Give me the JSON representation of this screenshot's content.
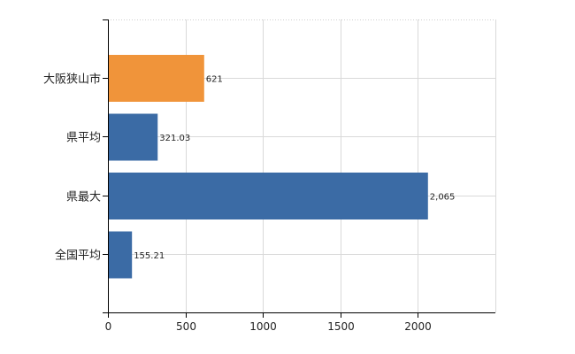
{
  "chart_data": {
    "type": "bar",
    "orientation": "horizontal",
    "categories": [
      "大阪狭山市",
      "県平均",
      "県最大",
      "全国平均"
    ],
    "values": [
      621,
      321.03,
      2065,
      155.21
    ],
    "value_labels": [
      "621",
      "321.03",
      "2,065",
      "155.21"
    ],
    "bar_colors": [
      "#f0943a",
      "#3b6ba5",
      "#3b6ba5",
      "#3b6ba5"
    ],
    "xlim": [
      0,
      2500
    ],
    "x_ticks": [
      0,
      500,
      1000,
      1500,
      2000
    ],
    "grid": true
  }
}
